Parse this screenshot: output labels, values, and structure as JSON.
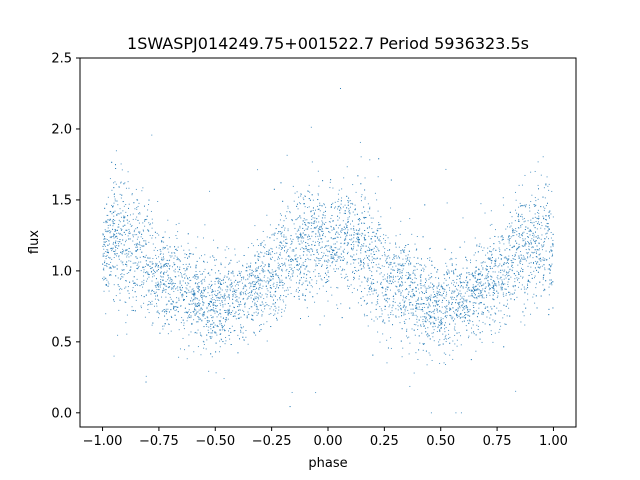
{
  "chart_data": {
    "type": "scatter",
    "title": "1SWASPJ014249.75+001522.7 Period 5936323.5s",
    "xlabel": "phase",
    "ylabel": "flux",
    "xlim": [
      -1.1,
      1.1
    ],
    "ylim": [
      -0.1,
      2.5
    ],
    "xticks": [
      -1.0,
      -0.75,
      -0.5,
      -0.25,
      0.0,
      0.25,
      0.5,
      0.75,
      1.0
    ],
    "xtick_labels": [
      "−1.00",
      "−0.75",
      "−0.50",
      "−0.25",
      "0.00",
      "0.25",
      "0.50",
      "0.75",
      "1.00"
    ],
    "yticks": [
      0.0,
      0.5,
      1.0,
      1.5,
      2.0,
      2.5
    ],
    "ytick_labels": [
      "0.0",
      "0.5",
      "1.0",
      "1.5",
      "2.0",
      "2.5"
    ],
    "grid": false,
    "marker_color": "#1f77b4",
    "phase_range": [
      -1.0,
      1.0
    ],
    "series": [
      {
        "trend": {
          "x": [
            -1.0,
            -0.95,
            -0.9,
            -0.85,
            -0.8,
            -0.75,
            -0.7,
            -0.65,
            -0.6,
            -0.55,
            -0.5,
            -0.45,
            -0.4,
            -0.35,
            -0.3,
            -0.25,
            -0.2,
            -0.15,
            -0.1,
            -0.05,
            0.0,
            0.05,
            0.1,
            0.15,
            0.2,
            0.25,
            0.3,
            0.35,
            0.4,
            0.45,
            0.5,
            0.55,
            0.6,
            0.65,
            0.7,
            0.75,
            0.8,
            0.85,
            0.9,
            0.95,
            1.0
          ],
          "y": [
            1.15,
            1.25,
            1.2,
            1.15,
            1.05,
            0.95,
            0.95,
            0.9,
            0.82,
            0.78,
            0.75,
            0.78,
            0.8,
            0.85,
            0.9,
            0.95,
            1.05,
            1.12,
            1.18,
            1.22,
            1.15,
            1.25,
            1.2,
            1.15,
            1.05,
            0.95,
            0.95,
            0.9,
            0.82,
            0.78,
            0.75,
            0.78,
            0.8,
            0.85,
            0.9,
            0.95,
            1.05,
            1.12,
            1.18,
            1.22,
            1.15
          ]
        },
        "spread": {
          "x": [
            -1.0,
            -0.9,
            -0.75,
            -0.6,
            -0.5,
            -0.35,
            -0.2,
            -0.05,
            0.0,
            0.1,
            0.25,
            0.4,
            0.5,
            0.65,
            0.8,
            0.95,
            1.0
          ],
          "y": [
            0.18,
            0.22,
            0.18,
            0.17,
            0.17,
            0.15,
            0.18,
            0.22,
            0.18,
            0.22,
            0.18,
            0.17,
            0.17,
            0.15,
            0.18,
            0.22,
            0.18
          ]
        }
      }
    ]
  }
}
